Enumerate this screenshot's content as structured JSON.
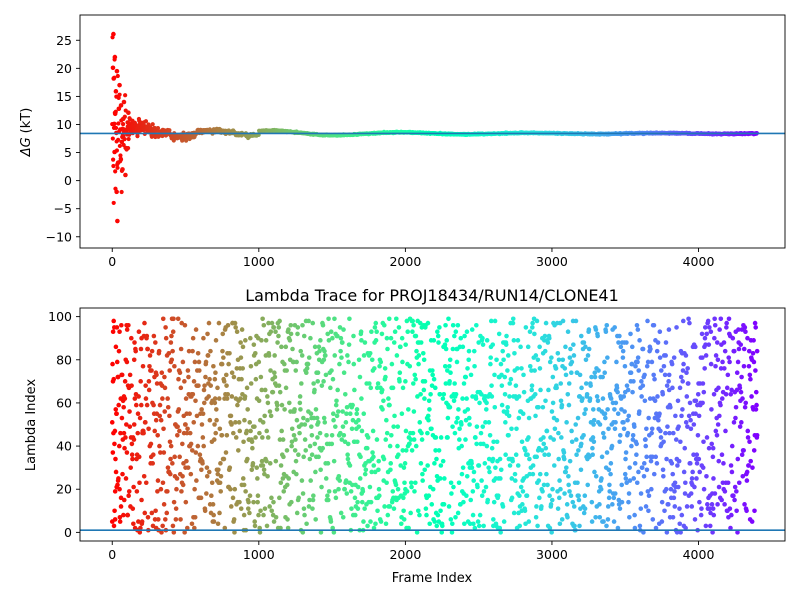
{
  "chart_data": [
    {
      "type": "scatter",
      "title": "",
      "xlabel": "",
      "ylabel": "ΔG (kT)",
      "ylabel_parts": {
        "symbol": "ΔG",
        "unit": "(kT)"
      },
      "xlim": [
        -220,
        4590
      ],
      "ylim": [
        -12,
        29.5
      ],
      "xticks": [
        0,
        1000,
        2000,
        3000,
        4000
      ],
      "xtick_labels": [
        "0",
        "1000",
        "2000",
        "3000",
        "4000"
      ],
      "yticks": [
        -10,
        -5,
        0,
        5,
        10,
        15,
        20,
        25
      ],
      "ytick_labels": [
        "−10",
        "−5",
        "0",
        "5",
        "10",
        "15",
        "20",
        "25"
      ],
      "reference_line": {
        "y": 8.4,
        "color": "#1f77b4"
      },
      "colormap": "rainbow (red at frame 0 → violet at frame 4400)",
      "n_frames": 4400,
      "series": [
        {
          "points_sample": [
            [
              5,
              20.1
            ],
            [
              8,
              26.1
            ],
            [
              10,
              18.2
            ],
            [
              14,
              10.1
            ],
            [
              16,
              5.1
            ],
            [
              18,
              22.0
            ],
            [
              20,
              11.9
            ],
            [
              25,
              15.9
            ],
            [
              28,
              8.5
            ],
            [
              30,
              -2.0
            ],
            [
              32,
              19.5
            ],
            [
              35,
              -7.2
            ],
            [
              40,
              3.2
            ],
            [
              45,
              12.8
            ],
            [
              50,
              17.0
            ],
            [
              55,
              9.1
            ],
            [
              60,
              13.4
            ],
            [
              65,
              6.9
            ],
            [
              70,
              2.0
            ],
            [
              75,
              11.0
            ],
            [
              80,
              14.0
            ],
            [
              90,
              1.0
            ],
            [
              100,
              8.5
            ],
            [
              110,
              12.1
            ],
            [
              130,
              10.5
            ],
            [
              150,
              6.8
            ],
            [
              170,
              11.2
            ],
            [
              200,
              9.0
            ],
            [
              230,
              6.0
            ],
            [
              260,
              10.0
            ],
            [
              280,
              4.8
            ],
            [
              300,
              7.0
            ],
            [
              350,
              9.0
            ],
            [
              400,
              8.0
            ],
            [
              450,
              10.0
            ],
            [
              500,
              7.5
            ],
            [
              600,
              9.3
            ],
            [
              700,
              8.6
            ],
            [
              800,
              8.1
            ],
            [
              900,
              7.6
            ],
            [
              1000,
              7.9
            ],
            [
              1100,
              8.4
            ],
            [
              1200,
              8.8
            ],
            [
              1300,
              8.9
            ],
            [
              1400,
              8.6
            ],
            [
              1600,
              8.5
            ],
            [
              2000,
              8.4
            ],
            [
              2500,
              8.5
            ],
            [
              3000,
              8.4
            ],
            [
              3500,
              8.4
            ],
            [
              4000,
              8.4
            ],
            [
              4400,
              8.4
            ]
          ]
        }
      ]
    },
    {
      "type": "scatter",
      "title": "Lambda Trace for PROJ18434/RUN14/CLONE41",
      "xlabel": "Frame Index",
      "ylabel": "Lambda Index",
      "xlim": [
        -220,
        4590
      ],
      "ylim": [
        -4,
        104
      ],
      "xticks": [
        0,
        1000,
        2000,
        3000,
        4000
      ],
      "xtick_labels": [
        "0",
        "1000",
        "2000",
        "3000",
        "4000"
      ],
      "yticks": [
        0,
        20,
        40,
        60,
        80,
        100
      ],
      "ytick_labels": [
        "0",
        "20",
        "40",
        "60",
        "80",
        "100"
      ],
      "reference_line": {
        "y": 1,
        "color": "#1f77b4"
      },
      "colormap": "rainbow (red at frame 0 → violet at frame 4400)",
      "n_frames": 4400,
      "lambda_range": [
        0,
        99
      ],
      "series": [
        {
          "points_sample": [
            [
              0,
              5
            ],
            [
              5,
              70
            ],
            [
              10,
              98
            ],
            [
              15,
              41
            ],
            [
              20,
              19
            ],
            [
              25,
              86
            ],
            [
              30,
              55
            ],
            [
              40,
              24
            ],
            [
              50,
              93
            ],
            [
              60,
              12
            ],
            [
              80,
              63
            ],
            [
              100,
              37
            ],
            [
              150,
              80
            ],
            [
              200,
              15
            ],
            [
              300,
              52
            ],
            [
              400,
              88
            ],
            [
              500,
              30
            ],
            [
              700,
              71
            ],
            [
              900,
              8
            ],
            [
              1100,
              95
            ],
            [
              1400,
              44
            ],
            [
              1700,
              62
            ],
            [
              2000,
              20
            ],
            [
              2300,
              77
            ],
            [
              2600,
              3
            ],
            [
              2900,
              58
            ],
            [
              3200,
              91
            ],
            [
              3500,
              27
            ],
            [
              3800,
              66
            ],
            [
              4100,
              11
            ],
            [
              4400,
              84
            ]
          ]
        }
      ]
    }
  ]
}
